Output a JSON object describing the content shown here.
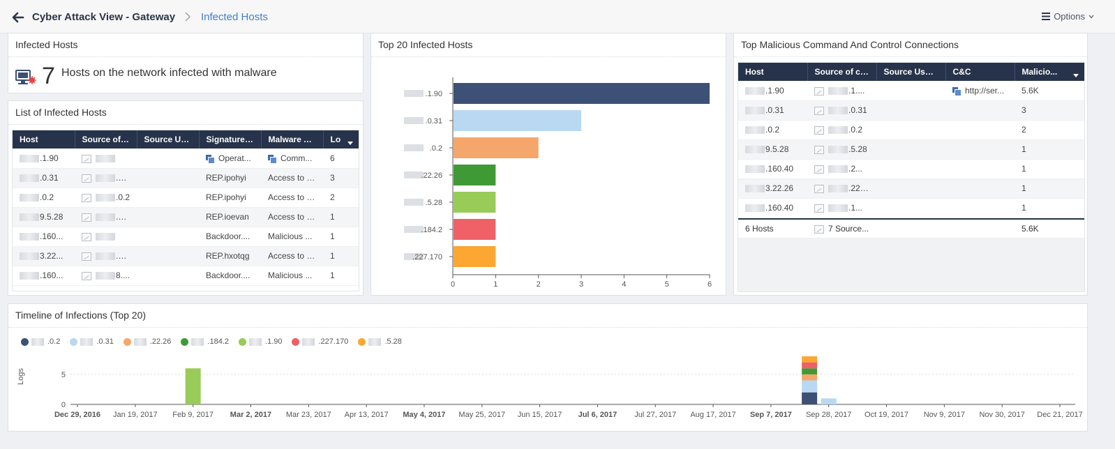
{
  "header": {
    "title": "Cyber Attack View - Gateway",
    "subtitle": "Infected Hosts",
    "options_label": "Options"
  },
  "infected_hosts_panel": {
    "title": "Infected Hosts",
    "count": "7",
    "description": "Hosts on the network infected with malware"
  },
  "list_panel": {
    "title": "List of Infected Hosts",
    "columns": [
      "Host",
      "Source of ...",
      "Source Us...",
      "Signature ...",
      "Malware A...",
      "Lo"
    ],
    "rows": [
      {
        "host": ".1.90",
        "source": "",
        "signature": "Operat...",
        "malware": "Comm...",
        "logs": "6"
      },
      {
        "host": ".0.31",
        "source": ".0.31",
        "signature": "REP.ipohyi",
        "malware": "Access to s...",
        "logs": "3"
      },
      {
        "host": ".0.2",
        "source": ".0.2",
        "signature": "REP.ipohyi",
        "malware": "Access to s...",
        "logs": "2"
      },
      {
        "host": "9.5.28",
        "source": ".5.28",
        "signature": "REP.ioevan",
        "malware": "Access to s...",
        "logs": "1"
      },
      {
        "host": ".160...",
        "source": "",
        "signature": "Backdoor....",
        "malware": "Malicious ...",
        "logs": "1"
      },
      {
        "host": "3.22...",
        "source": ".22...",
        "signature": "REP.hxotqg",
        "malware": "Access to s...",
        "logs": "1"
      },
      {
        "host": ".160...",
        "source": "8....",
        "signature": "Backdoor....",
        "malware": "Malicious ...",
        "logs": "1"
      }
    ]
  },
  "top20_panel": {
    "title": "Top 20 Infected Hosts"
  },
  "chart_data": [
    {
      "type": "bar",
      "orientation": "horizontal",
      "categories": [
        ".1.90",
        ".0.31",
        ".0.2",
        ".22.26",
        ".5.28",
        ".184.2",
        ".227.170"
      ],
      "values": [
        6,
        3,
        2,
        1,
        1,
        1,
        1
      ],
      "colors": [
        "#3d5075",
        "#b9d8f2",
        "#f5a66a",
        "#3f9a35",
        "#98cb57",
        "#ef6166",
        "#fba732"
      ],
      "xlim": [
        0,
        6
      ],
      "xticks": [
        0,
        1,
        2,
        3,
        4,
        5,
        6
      ],
      "grid": false
    },
    {
      "type": "bar",
      "stacked": true,
      "ylabel": "Logs",
      "ylim": [
        0,
        7
      ],
      "yticks": [
        0,
        5
      ],
      "xticks": [
        "Dec 29, 2016",
        "Jan 19, 2017",
        "Feb 9, 2017",
        "Mar 2, 2017",
        "Mar 23, 2017",
        "Apr 13, 2017",
        "May 4, 2017",
        "May 25, 2017",
        "Jun 15, 2017",
        "Jul 6, 2017",
        "Jul 27, 2017",
        "Aug 17, 2017",
        "Sep 7, 2017",
        "Sep 28, 2017",
        "Oct 19, 2017",
        "Nov 9, 2017",
        "Nov 30, 2017",
        "Dec 21, 2017"
      ],
      "xticks_bold": [
        "Dec 29, 2016",
        "Mar 2, 2017",
        "May 4, 2017",
        "Jul 6, 2017",
        "Sep 7, 2017"
      ],
      "legend_position": "top-left",
      "series": [
        {
          "name": ".0.2",
          "color": "#3d5075"
        },
        {
          "name": ".0.31",
          "color": "#b9d8f2"
        },
        {
          "name": ".22.26",
          "color": "#f5a66a"
        },
        {
          "name": ".184.2",
          "color": "#3f9a35"
        },
        {
          "name": ".1.90",
          "color": "#98cb57"
        },
        {
          "name": ".227.170",
          "color": "#ef6166"
        },
        {
          "name": ".5.28",
          "color": "#fba732"
        }
      ],
      "bars": [
        {
          "date": "Feb 9, 2017",
          "stack": [
            {
              "series": ".1.90",
              "value": 6
            }
          ]
        },
        {
          "date": "Sep 21, 2017",
          "stack": [
            {
              "series": ".0.2",
              "value": 2
            },
            {
              "series": ".0.31",
              "value": 2
            },
            {
              "series": ".22.26",
              "value": 1
            },
            {
              "series": ".184.2",
              "value": 1
            },
            {
              "series": ".227.170",
              "value": 1
            },
            {
              "series": ".5.28",
              "value": 1
            }
          ]
        },
        {
          "date": "Sep 28, 2017",
          "stack": [
            {
              "series": ".0.31",
              "value": 1
            }
          ]
        }
      ]
    }
  ],
  "cnc_panel": {
    "title": "Top Malicious Command And Control Connections",
    "columns": [
      "Host",
      "Source of co...",
      "Source User...",
      "C&C",
      "Malicio..."
    ],
    "rows": [
      {
        "host": ".1.90",
        "source": ".1....",
        "cnc": "http://ser...",
        "mal": "5.6K"
      },
      {
        "host": ".0.31",
        "source": ".0.31",
        "cnc": "",
        "mal": "3"
      },
      {
        "host": ".0.2",
        "source": ".0.2",
        "cnc": "",
        "mal": "2"
      },
      {
        "host": "9.5.28",
        "source": ".5.28",
        "cnc": "",
        "mal": "1"
      },
      {
        "host": ".160.40",
        "source": ".2...",
        "cnc": "",
        "mal": "1"
      },
      {
        "host": "3.22.26",
        "source": ".22.26",
        "cnc": "",
        "mal": "1"
      },
      {
        "host": ".160.40",
        "source": ".1...",
        "cnc": "",
        "mal": "1"
      }
    ],
    "footer": {
      "host": "6 Hosts",
      "source": "7 Source...",
      "mal": "5.6K"
    }
  },
  "timeline_panel": {
    "title": "Timeline of Infections (Top 20)"
  }
}
